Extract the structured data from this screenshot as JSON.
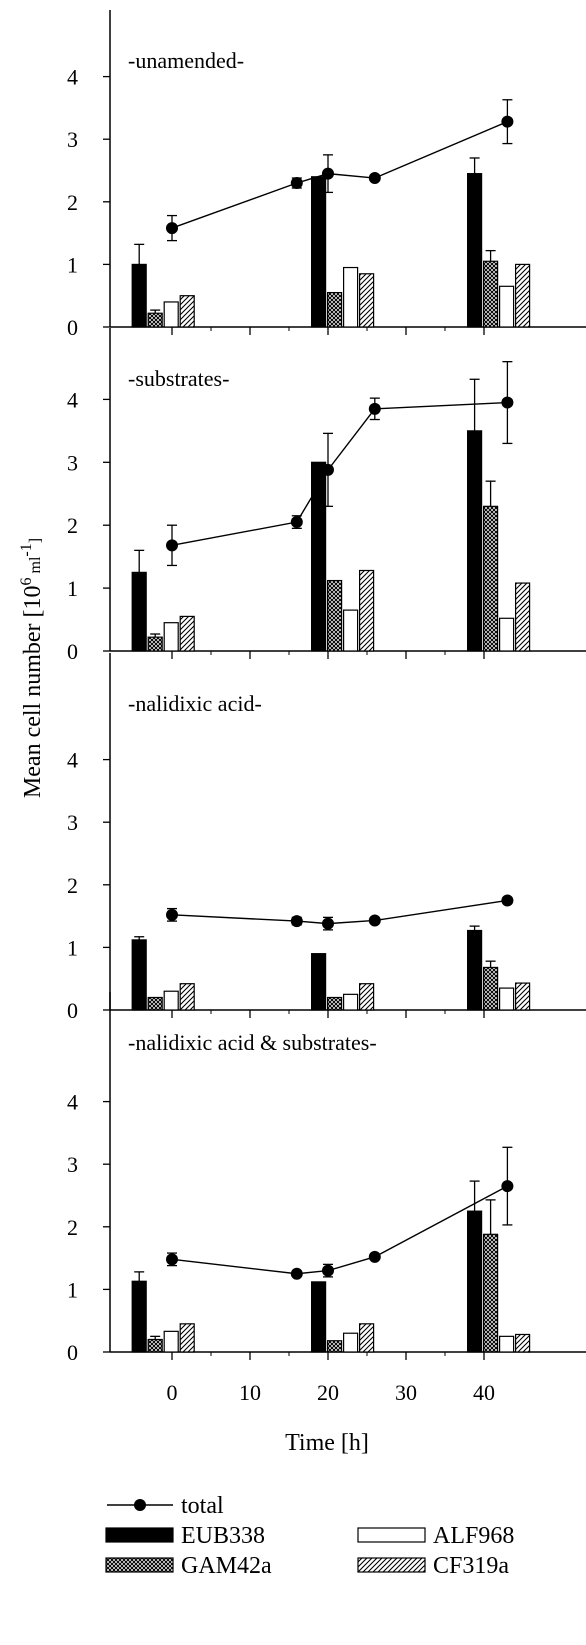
{
  "chart_data": {
    "type": "bar",
    "xlabel": "Time [h]",
    "ylabel": "Mean cell number [10^6 ml^-1]",
    "ylabel_parts": {
      "pre": "Mean cell number [10",
      "exp1": "6",
      "mid": " ml",
      "exp2": "-1",
      "post": "]"
    },
    "xlim": [
      -6,
      47
    ],
    "ylim": [
      0,
      4.8
    ],
    "xticks": [
      0,
      10,
      20,
      30,
      40
    ],
    "xtick_labels": [
      "0",
      "10",
      "20",
      "30",
      "40"
    ],
    "yticks": [
      0,
      1,
      2,
      3,
      4
    ],
    "ytick_labels": [
      "0",
      "1",
      "2",
      "3",
      "4"
    ],
    "categories": [
      "EUB338",
      "GAM42a",
      "ALF968",
      "CF319a"
    ],
    "bar_groups_start_x": [
      -1,
      22,
      42
    ],
    "legend": {
      "total": "total",
      "EUB338": "EUB338",
      "GAM42a": "GAM42a",
      "ALF968": "ALF968",
      "CF319a": "CF319a"
    },
    "panels": [
      {
        "title": "-unamended-",
        "bars": [
          {
            "values": [
              1.0,
              0.22,
              0.4,
              0.5
            ],
            "errors": [
              0.32,
              0.05,
              null,
              null
            ]
          },
          {
            "values": [
              2.4,
              0.55,
              0.95,
              0.85
            ],
            "errors": [
              null,
              null,
              null,
              null
            ]
          },
          {
            "values": [
              2.45,
              1.05,
              0.65,
              1.0
            ],
            "errors": [
              0.25,
              0.17,
              null,
              null
            ]
          }
        ],
        "total": [
          {
            "x": 0,
            "y": 1.58,
            "err": 0.2
          },
          {
            "x": 16,
            "y": 2.3,
            "err": 0.08
          },
          {
            "x": 20,
            "y": 2.45,
            "err": 0.3
          },
          {
            "x": 26,
            "y": 2.38,
            "err": null
          },
          {
            "x": 43,
            "y": 3.28,
            "err": 0.35
          }
        ]
      },
      {
        "title": "-substrates-",
        "bars": [
          {
            "values": [
              1.25,
              0.22,
              0.45,
              0.55
            ],
            "errors": [
              0.35,
              0.05,
              null,
              null
            ]
          },
          {
            "values": [
              3.0,
              1.12,
              0.65,
              1.28
            ],
            "errors": [
              null,
              null,
              null,
              null
            ]
          },
          {
            "values": [
              3.5,
              2.3,
              0.52,
              1.08
            ],
            "errors": [
              0.82,
              0.4,
              null,
              null
            ]
          }
        ],
        "total": [
          {
            "x": 0,
            "y": 1.68,
            "err": 0.32
          },
          {
            "x": 16,
            "y": 2.05,
            "err": 0.1
          },
          {
            "x": 20,
            "y": 2.88,
            "err": 0.58
          },
          {
            "x": 26,
            "y": 3.85,
            "err": 0.17
          },
          {
            "x": 43,
            "y": 3.95,
            "err": 0.65
          }
        ]
      },
      {
        "title": "-nalidixic acid-",
        "bars": [
          {
            "values": [
              1.12,
              0.2,
              0.3,
              0.42
            ],
            "errors": [
              0.05,
              null,
              null,
              null
            ]
          },
          {
            "values": [
              0.9,
              0.2,
              0.25,
              0.42
            ],
            "errors": [
              null,
              null,
              null,
              null
            ]
          },
          {
            "values": [
              1.27,
              0.68,
              0.35,
              0.43
            ],
            "errors": [
              0.07,
              0.1,
              null,
              null
            ]
          }
        ],
        "total": [
          {
            "x": 0,
            "y": 1.52,
            "err": 0.1
          },
          {
            "x": 16,
            "y": 1.42,
            "err": 0.06
          },
          {
            "x": 20,
            "y": 1.38,
            "err": 0.1
          },
          {
            "x": 26,
            "y": 1.43,
            "err": null
          },
          {
            "x": 43,
            "y": 1.75,
            "err": null
          }
        ]
      },
      {
        "title": "-nalidixic acid & substrates-",
        "bars": [
          {
            "values": [
              1.13,
              0.2,
              0.33,
              0.45
            ],
            "errors": [
              0.15,
              0.05,
              null,
              null
            ]
          },
          {
            "values": [
              1.12,
              0.18,
              0.3,
              0.45
            ],
            "errors": [
              null,
              null,
              null,
              null
            ]
          },
          {
            "values": [
              2.25,
              1.88,
              0.25,
              0.28
            ],
            "errors": [
              0.48,
              0.55,
              null,
              null
            ]
          }
        ],
        "total": [
          {
            "x": 0,
            "y": 1.48,
            "err": 0.1
          },
          {
            "x": 16,
            "y": 1.25,
            "err": null
          },
          {
            "x": 20,
            "y": 1.3,
            "err": 0.1
          },
          {
            "x": 26,
            "y": 1.52,
            "err": null
          },
          {
            "x": 43,
            "y": 2.65,
            "err": 0.62
          }
        ]
      }
    ]
  }
}
